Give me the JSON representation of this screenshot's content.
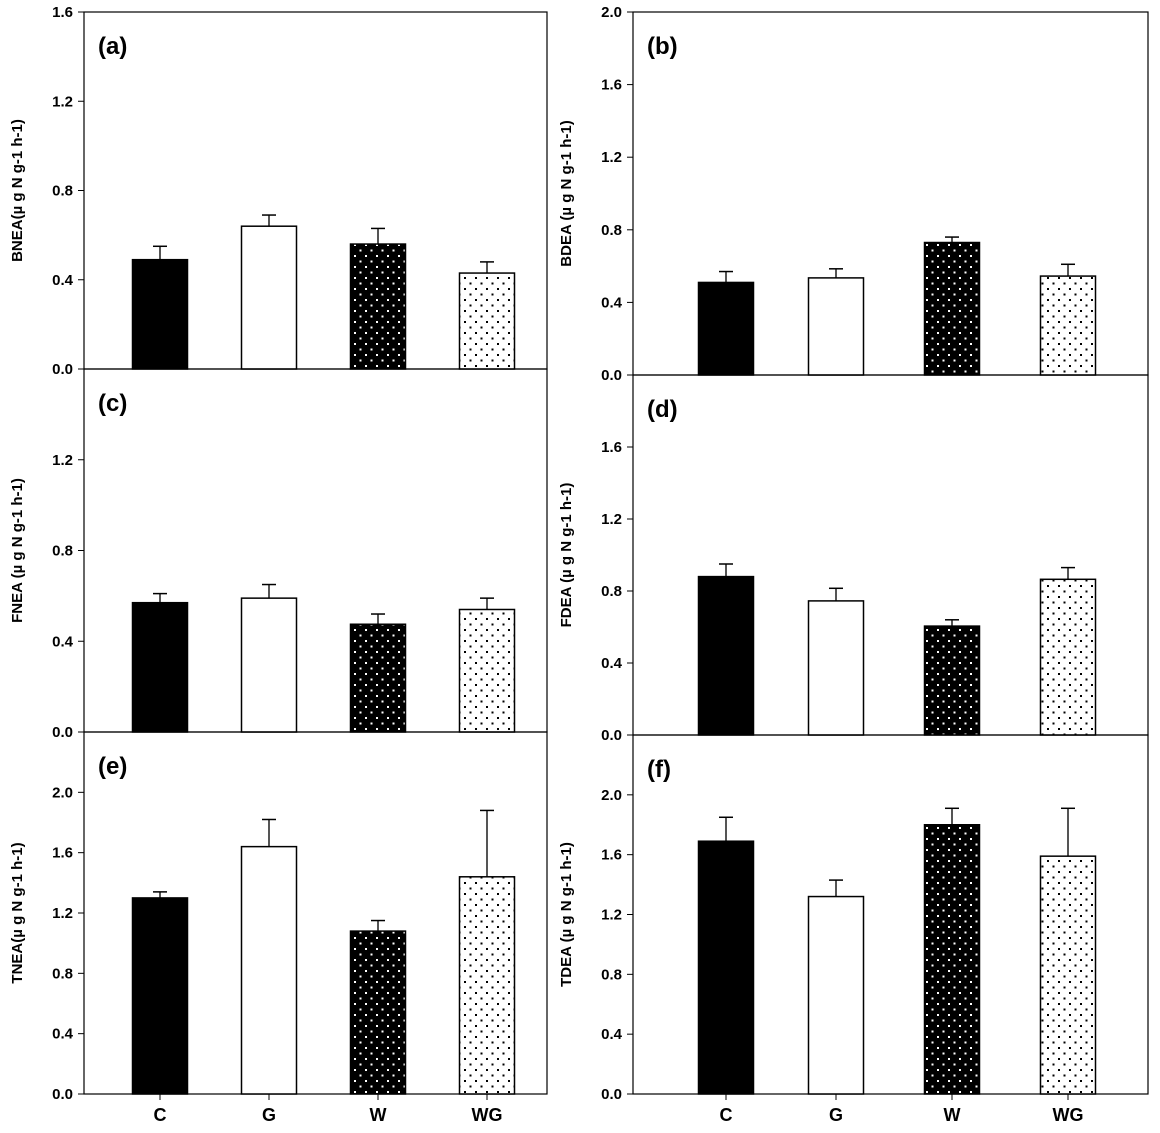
{
  "chart_data": [
    {
      "type": "bar",
      "panel": "(a)",
      "ylabel": "BNEA(µ g N g-1 h-1)",
      "ylim": [
        0,
        1.6
      ],
      "yticks": [
        "0.0",
        "0.4",
        "0.8",
        "1.2",
        "1.6"
      ],
      "categories": [
        "C",
        "G",
        "W",
        "WG"
      ],
      "values": [
        0.49,
        0.64,
        0.56,
        0.43
      ],
      "errors": [
        0.06,
        0.05,
        0.07,
        0.05
      ]
    },
    {
      "type": "bar",
      "panel": "(b)",
      "ylabel": "BDEA (µ g N g-1 h-1)",
      "ylim": [
        0,
        2.0
      ],
      "yticks": [
        "0.0",
        "0.4",
        "0.8",
        "1.2",
        "1.6",
        "2.0"
      ],
      "categories": [
        "C",
        "G",
        "W",
        "WG"
      ],
      "values": [
        0.51,
        0.535,
        0.73,
        0.545
      ],
      "errors": [
        0.06,
        0.05,
        0.03,
        0.065
      ]
    },
    {
      "type": "bar",
      "panel": "(c)",
      "ylabel": "FNEA (µ g N g-1 h-1)",
      "ylim": [
        0,
        1.6
      ],
      "yticks": [
        "0.0",
        "0.4",
        "0.8",
        "1.2"
      ],
      "categories": [
        "C",
        "G",
        "W",
        "WG"
      ],
      "values": [
        0.57,
        0.59,
        0.475,
        0.54
      ],
      "errors": [
        0.04,
        0.06,
        0.045,
        0.05
      ]
    },
    {
      "type": "bar",
      "panel": "(d)",
      "ylabel": "FDEA (µ g N g-1 h-1)",
      "ylim": [
        0,
        2.0
      ],
      "yticks": [
        "0.0",
        "0.4",
        "0.8",
        "1.2",
        "1.6"
      ],
      "categories": [
        "C",
        "G",
        "W",
        "WG"
      ],
      "values": [
        0.88,
        0.745,
        0.605,
        0.865
      ],
      "errors": [
        0.07,
        0.07,
        0.035,
        0.065
      ]
    },
    {
      "type": "bar",
      "panel": "(e)",
      "ylabel": "TNEA(µ g N g-1 h-1)",
      "ylim": [
        0,
        2.4
      ],
      "yticks": [
        "0.0",
        "0.4",
        "0.8",
        "1.2",
        "1.6",
        "2.0"
      ],
      "categories": [
        "C",
        "G",
        "W",
        "WG"
      ],
      "values": [
        1.3,
        1.64,
        1.08,
        1.44
      ],
      "errors": [
        0.04,
        0.18,
        0.07,
        0.44
      ]
    },
    {
      "type": "bar",
      "panel": "(f)",
      "ylabel": "TDEA (µ g N g-1 h-1)",
      "ylim": [
        0,
        2.4
      ],
      "yticks": [
        "0.0",
        "0.4",
        "0.8",
        "1.2",
        "1.6",
        "2.0"
      ],
      "categories": [
        "C",
        "G",
        "W",
        "WG"
      ],
      "values": [
        1.69,
        1.32,
        1.8,
        1.59
      ],
      "errors": [
        0.16,
        0.11,
        0.11,
        0.32
      ]
    }
  ],
  "x_tick_labels": [
    "C",
    "G",
    "W",
    "WG"
  ]
}
